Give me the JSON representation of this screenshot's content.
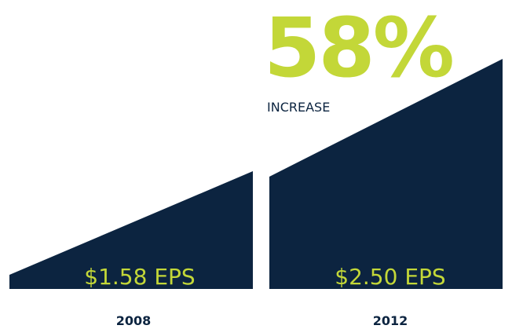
{
  "headline": {
    "value": "58%",
    "label": "INCREASE"
  },
  "panels": [
    {
      "label": "$1.58 EPS",
      "year": "2008"
    },
    {
      "label": "$2.50 EPS",
      "year": "2012"
    }
  ]
}
